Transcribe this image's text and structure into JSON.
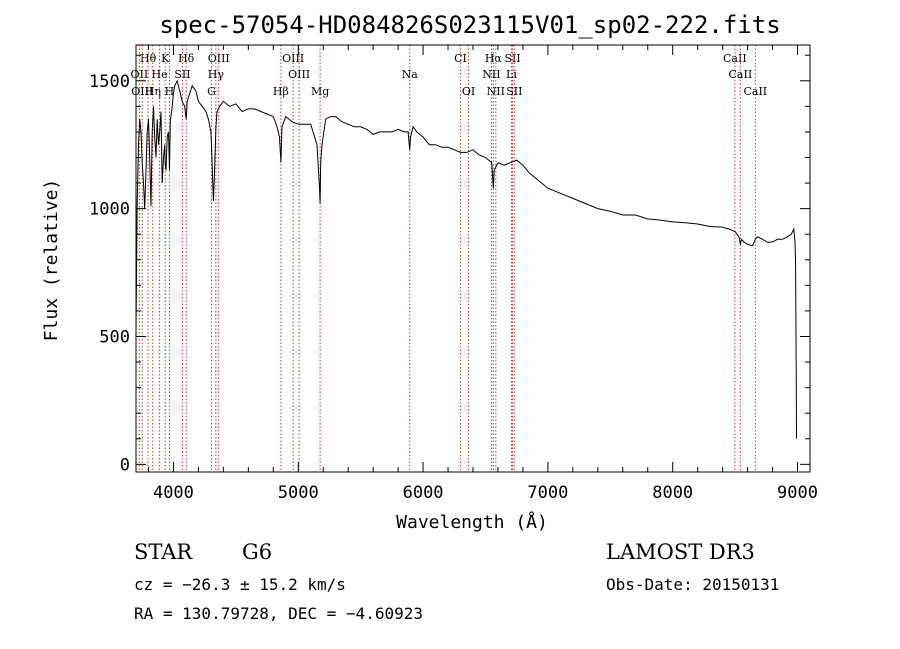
{
  "chart_data": {
    "type": "line",
    "title": "spec-57054-HD084826S023115V01_sp02-222.fits",
    "xlabel": "Wavelength (Å)",
    "ylabel": "Flux (relative)",
    "xlim": [
      3700,
      9100
    ],
    "ylim": [
      -30,
      1640
    ],
    "x_ticks": [
      4000,
      5000,
      6000,
      7000,
      8000,
      9000
    ],
    "y_ticks": [
      0,
      500,
      1000,
      1500
    ],
    "series": [
      {
        "name": "spectrum",
        "x": [
          3700,
          3710,
          3720,
          3730,
          3740,
          3750,
          3760,
          3770,
          3780,
          3790,
          3800,
          3810,
          3820,
          3830,
          3840,
          3850,
          3860,
          3870,
          3880,
          3890,
          3900,
          3910,
          3920,
          3930,
          3933,
          3940,
          3950,
          3960,
          3968,
          3975,
          3990,
          4000,
          4010,
          4030,
          4050,
          4070,
          4090,
          4102,
          4110,
          4130,
          4150,
          4180,
          4200,
          4230,
          4260,
          4280,
          4300,
          4310,
          4320,
          4330,
          4340,
          4350,
          4370,
          4400,
          4450,
          4500,
          4550,
          4600,
          4650,
          4700,
          4750,
          4800,
          4830,
          4850,
          4861,
          4870,
          4900,
          4950,
          5000,
          5050,
          5100,
          5150,
          5170,
          5175,
          5180,
          5190,
          5220,
          5260,
          5300,
          5350,
          5400,
          5450,
          5500,
          5550,
          5600,
          5650,
          5700,
          5750,
          5800,
          5850,
          5880,
          5893,
          5900,
          5920,
          5950,
          6000,
          6050,
          6100,
          6150,
          6200,
          6250,
          6300,
          6350,
          6400,
          6450,
          6500,
          6550,
          6563,
          6570,
          6600,
          6650,
          6700,
          6750,
          6800,
          6850,
          6900,
          7000,
          7100,
          7200,
          7300,
          7400,
          7500,
          7600,
          7700,
          7800,
          7900,
          8000,
          8100,
          8200,
          8300,
          8400,
          8450,
          8500,
          8530,
          8542,
          8550,
          8570,
          8600,
          8640,
          8662,
          8680,
          8720,
          8760,
          8800,
          8840,
          8880,
          8920,
          8950,
          8970,
          8980,
          8985,
          8990,
          8992
        ],
        "y": [
          520,
          1020,
          1250,
          1350,
          1300,
          1180,
          1100,
          1000,
          1150,
          1300,
          1350,
          1200,
          1010,
          1300,
          1400,
          1280,
          1200,
          1350,
          1250,
          1300,
          1380,
          1100,
          1200,
          1250,
          1180,
          1150,
          1280,
          1300,
          1150,
          1340,
          1400,
          1450,
          1480,
          1500,
          1460,
          1420,
          1400,
          1350,
          1420,
          1450,
          1480,
          1460,
          1420,
          1400,
          1380,
          1350,
          1300,
          1180,
          1030,
          1150,
          1320,
          1380,
          1400,
          1420,
          1400,
          1410,
          1380,
          1390,
          1390,
          1380,
          1370,
          1360,
          1320,
          1280,
          1180,
          1320,
          1360,
          1340,
          1330,
          1330,
          1330,
          1250,
          1080,
          1020,
          1180,
          1250,
          1350,
          1360,
          1360,
          1340,
          1330,
          1320,
          1320,
          1310,
          1290,
          1300,
          1300,
          1300,
          1310,
          1300,
          1300,
          1230,
          1280,
          1320,
          1300,
          1280,
          1250,
          1250,
          1240,
          1240,
          1230,
          1220,
          1220,
          1230,
          1210,
          1200,
          1180,
          1080,
          1150,
          1180,
          1170,
          1180,
          1190,
          1170,
          1140,
          1120,
          1080,
          1060,
          1040,
          1020,
          1000,
          990,
          975,
          975,
          960,
          955,
          948,
          945,
          940,
          930,
          928,
          920,
          910,
          890,
          860,
          880,
          870,
          860,
          855,
          880,
          890,
          880,
          868,
          870,
          880,
          880,
          890,
          900,
          920,
          870,
          780,
          300,
          100
        ]
      }
    ],
    "line_markers": [
      {
        "label": "Hθ",
        "x": 3797,
        "row": 0
      },
      {
        "label": "K",
        "x": 3934,
        "row": 0
      },
      {
        "label": "Hδ",
        "x": 4102,
        "row": 0
      },
      {
        "label": "OIII",
        "x": 4363,
        "row": 0
      },
      {
        "label": "OIII",
        "x": 4959,
        "row": 0
      },
      {
        "label": "CI",
        "x": 6300,
        "row": 0
      },
      {
        "label": "Hα",
        "x": 6563,
        "row": 0
      },
      {
        "label": "SII",
        "x": 6717,
        "row": 0
      },
      {
        "label": "CaII",
        "x": 8498,
        "row": 0
      },
      {
        "label": "OII",
        "x": 3727,
        "row": 1
      },
      {
        "label": "He",
        "x": 3889,
        "row": 1
      },
      {
        "label": "SII",
        "x": 4072,
        "row": 1
      },
      {
        "label": "Hγ",
        "x": 4340,
        "row": 1
      },
      {
        "label": "OIII",
        "x": 5007,
        "row": 1
      },
      {
        "label": "Na",
        "x": 5893,
        "row": 1
      },
      {
        "label": "NII",
        "x": 6548,
        "row": 1
      },
      {
        "label": "Li",
        "x": 6708,
        "row": 1
      },
      {
        "label": "CaII",
        "x": 8542,
        "row": 1
      },
      {
        "label": "OIII",
        "x": 3750,
        "row": 2
      },
      {
        "label": "Hη",
        "x": 3835,
        "row": 2
      },
      {
        "label": "H",
        "x": 3968,
        "row": 2
      },
      {
        "label": "G",
        "x": 4305,
        "row": 2
      },
      {
        "label": "Hβ",
        "x": 4861,
        "row": 2
      },
      {
        "label": "Mg",
        "x": 5175,
        "row": 2
      },
      {
        "label": "OI",
        "x": 6364,
        "row": 2
      },
      {
        "label": "NII",
        "x": 6583,
        "row": 2
      },
      {
        "label": "SII",
        "x": 6731,
        "row": 2
      },
      {
        "label": "CaII",
        "x": 8662,
        "row": 2
      }
    ]
  },
  "info": {
    "object_type": "STAR",
    "subclass": "G6",
    "survey": "LAMOST DR3",
    "cz_text": "cz = −26.3 ± 15.2 km/s",
    "obs_date_text": "Obs-Date: 20150131",
    "coords_text": "RA = 130.79728, DEC =  −4.60923"
  }
}
